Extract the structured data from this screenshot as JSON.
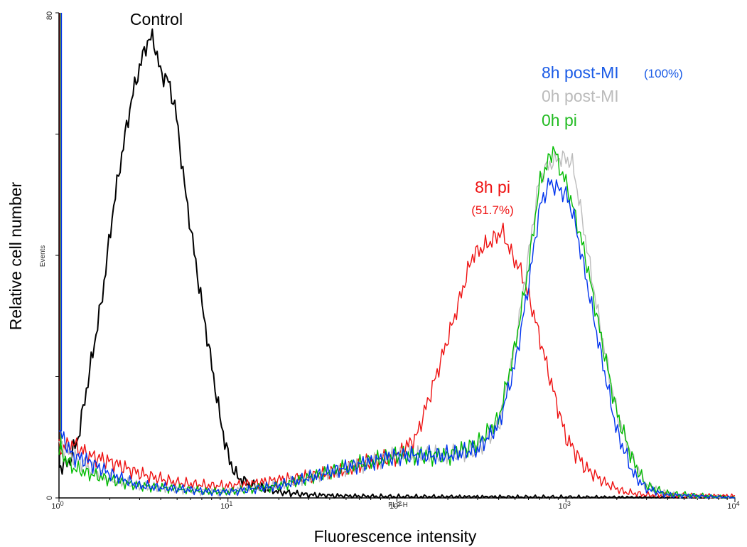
{
  "chart_data": {
    "type": "line",
    "xscale": "log",
    "xlim": [
      1,
      10000
    ],
    "ylim": [
      0,
      80
    ],
    "grid": false,
    "xlabel": "Fluorescence intensity",
    "ylabel": "Relative cell number",
    "x_channel_label": "FL2-H",
    "y_inner_label": "Events",
    "x_tick_labels": [
      {
        "base": "10",
        "exp": "0"
      },
      {
        "base": "10",
        "exp": "1"
      },
      {
        "base": "10",
        "exp": "2"
      },
      {
        "base": "10",
        "exp": "3"
      },
      {
        "base": "10",
        "exp": "4"
      }
    ],
    "y_tick_labels": [
      "0",
      "80"
    ],
    "annotations": {
      "control": "Control",
      "pi8_name": "8h pi",
      "pi8_pct": "(51.7%)",
      "post8_name": "8h post-MI",
      "post8_pct": "(100%)",
      "post0_name": "0h post-MI",
      "pi0_name": "0h pi"
    },
    "series": [
      {
        "color": "#000000",
        "x": [
          1,
          1.15,
          1.3,
          1.5,
          1.8,
          2.1,
          2.4,
          2.7,
          3.0,
          3.3,
          3.6,
          4.0,
          4.4,
          4.9,
          5.5,
          6.2,
          7.0,
          8.0,
          9.0,
          10,
          11,
          12,
          14,
          17,
          20,
          30,
          50,
          100,
          1000,
          10000
        ],
        "y": [
          5,
          6,
          10,
          20,
          33,
          48,
          58,
          66,
          71,
          75,
          76,
          70,
          69,
          64,
          52,
          42,
          32,
          22,
          13,
          7,
          4,
          3,
          2,
          1.5,
          1,
          0.5,
          0.3,
          0.2,
          0.1,
          0
        ]
      },
      {
        "color": "#ee1111",
        "x": [
          1,
          1.2,
          1.5,
          2,
          3,
          5,
          8,
          10,
          15,
          20,
          30,
          50,
          70,
          100,
          130,
          170,
          220,
          280,
          350,
          420,
          480,
          550,
          650,
          800,
          1000,
          1300,
          1700,
          2200,
          3000,
          10000
        ],
        "y": [
          8,
          9,
          7,
          6,
          4,
          2.5,
          2,
          2,
          2.5,
          3,
          3.5,
          4.5,
          6,
          7,
          10,
          20,
          30,
          40,
          42,
          44,
          40,
          37,
          30,
          20,
          10,
          5,
          2.5,
          1,
          0.5,
          0.3
        ]
      },
      {
        "color": "#bbbbbb",
        "x": [
          1,
          1.2,
          1.5,
          2,
          3,
          5,
          8,
          10,
          20,
          50,
          100,
          150,
          200,
          300,
          400,
          500,
          600,
          700,
          800,
          900,
          1000,
          1100,
          1300,
          1600,
          2000,
          2500,
          3000,
          4000,
          5000,
          10000
        ],
        "y": [
          9,
          7,
          5,
          3,
          2,
          1.5,
          1,
          1,
          2,
          5,
          7,
          7,
          7,
          8,
          12,
          25,
          40,
          53,
          55,
          56,
          56,
          55,
          43,
          28,
          14,
          6,
          2,
          0.8,
          0.3,
          0
        ]
      },
      {
        "color": "#00bb00",
        "x": [
          1,
          1.2,
          1.5,
          2,
          3,
          5,
          8,
          10,
          20,
          50,
          100,
          150,
          200,
          300,
          400,
          500,
          600,
          700,
          800,
          850,
          900,
          1000,
          1100,
          1300,
          1600,
          2000,
          2500,
          3000,
          4000,
          10000
        ],
        "y": [
          8,
          5,
          4,
          3,
          2,
          1.5,
          1,
          1,
          2,
          5,
          7,
          7,
          7,
          9,
          13,
          25,
          38,
          52,
          56,
          58,
          55,
          52,
          48,
          40,
          27,
          14,
          6,
          2,
          0.7,
          0
        ]
      },
      {
        "color": "#0033ee",
        "x": [
          1,
          1.1,
          1.2,
          1.5,
          2,
          3,
          5,
          8,
          10,
          20,
          50,
          100,
          150,
          200,
          300,
          400,
          500,
          600,
          700,
          800,
          900,
          1000,
          1100,
          1300,
          1600,
          2000,
          2500,
          3000,
          4000,
          10000
        ],
        "y": [
          11,
          9,
          7,
          6,
          4,
          2,
          1.5,
          1,
          1,
          2,
          5,
          7,
          7,
          7,
          8,
          12,
          22,
          35,
          48,
          52,
          51,
          50,
          47,
          37,
          24,
          11,
          4,
          1.5,
          0.5,
          0
        ]
      }
    ]
  }
}
